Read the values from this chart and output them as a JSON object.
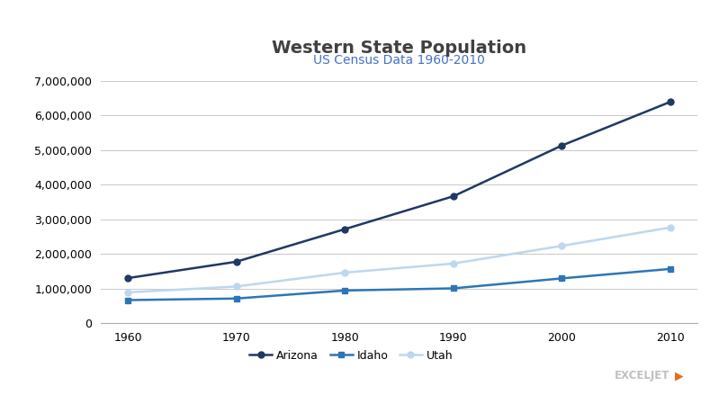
{
  "title": "Western State Population",
  "subtitle": "US Census Data 1960-2010",
  "title_color": "#404040",
  "subtitle_color": "#4472C4",
  "years": [
    1960,
    1970,
    1980,
    1990,
    2000,
    2010
  ],
  "arizona": [
    1302161,
    1775399,
    2716215,
    3665228,
    5130632,
    6392017
  ],
  "idaho": [
    667191,
    713008,
    943935,
    1006749,
    1293953,
    1567582
  ],
  "utah": [
    890627,
    1059273,
    1461037,
    1722850,
    2233169,
    2763885
  ],
  "arizona_color": "#1F3864",
  "idaho_color": "#2E75B6",
  "utah_color": "#BDD7EE",
  "background_color": "#FFFFFF",
  "grid_color": "#C8C8C8",
  "ylim": [
    0,
    7000000
  ],
  "yticks": [
    0,
    1000000,
    2000000,
    3000000,
    4000000,
    5000000,
    6000000,
    7000000
  ],
  "marker_size": 5,
  "line_width": 1.8,
  "title_fontsize": 14,
  "subtitle_fontsize": 10,
  "axis_fontsize": 9,
  "legend_fontsize": 9,
  "exceljet_color": "#C0C0C0",
  "exceljet_orange": "#E36F1E"
}
